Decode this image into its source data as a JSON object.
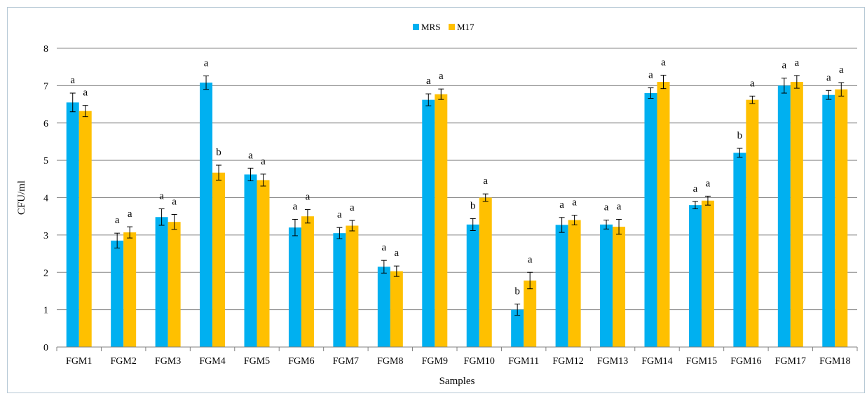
{
  "chart_data": {
    "type": "bar",
    "title": "",
    "xlabel": "Samples",
    "ylabel": "CFU/ml",
    "ylim": [
      0,
      8
    ],
    "yticks": [
      0,
      1,
      2,
      3,
      4,
      5,
      6,
      7,
      8
    ],
    "grid": true,
    "legend_position": "top-center",
    "categories": [
      "FGM1",
      "FGM2",
      "FGM3",
      "FGM4",
      "FGM5",
      "FGM6",
      "FGM7",
      "FGM8",
      "FGM9",
      "FGM10",
      "FGM11",
      "FGM12",
      "FGM13",
      "FGM14",
      "FGM15",
      "FGM16",
      "FGM17",
      "FGM18"
    ],
    "series": [
      {
        "name": "MRS",
        "color": "#00b0f0",
        "values": [
          6.55,
          2.85,
          3.48,
          7.08,
          4.62,
          3.2,
          3.05,
          2.15,
          6.62,
          3.28,
          1.0,
          3.27,
          3.28,
          6.8,
          3.8,
          5.2,
          7.0,
          6.75
        ],
        "errors": [
          0.25,
          0.2,
          0.22,
          0.18,
          0.17,
          0.22,
          0.15,
          0.17,
          0.16,
          0.16,
          0.15,
          0.2,
          0.12,
          0.14,
          0.1,
          0.12,
          0.2,
          0.12
        ],
        "letters": [
          "a",
          "a",
          "a",
          "a",
          "a",
          "a",
          "a",
          "a",
          "a",
          "b",
          "b",
          "a",
          "a",
          "a",
          "a",
          "b",
          "a",
          "a"
        ]
      },
      {
        "name": "M17",
        "color": "#ffc000",
        "values": [
          6.32,
          3.07,
          3.35,
          4.67,
          4.47,
          3.5,
          3.25,
          2.03,
          6.77,
          4.0,
          1.78,
          3.4,
          3.22,
          7.1,
          3.92,
          6.62,
          7.1,
          6.9
        ],
        "errors": [
          0.15,
          0.15,
          0.2,
          0.2,
          0.16,
          0.18,
          0.14,
          0.14,
          0.14,
          0.1,
          0.22,
          0.13,
          0.2,
          0.18,
          0.12,
          0.1,
          0.17,
          0.18
        ],
        "letters": [
          "a",
          "a",
          "a",
          "b",
          "a",
          "a",
          "a",
          "a",
          "a",
          "a",
          "a",
          "a",
          "a",
          "a",
          "a",
          "a",
          "a",
          "a"
        ]
      }
    ]
  }
}
